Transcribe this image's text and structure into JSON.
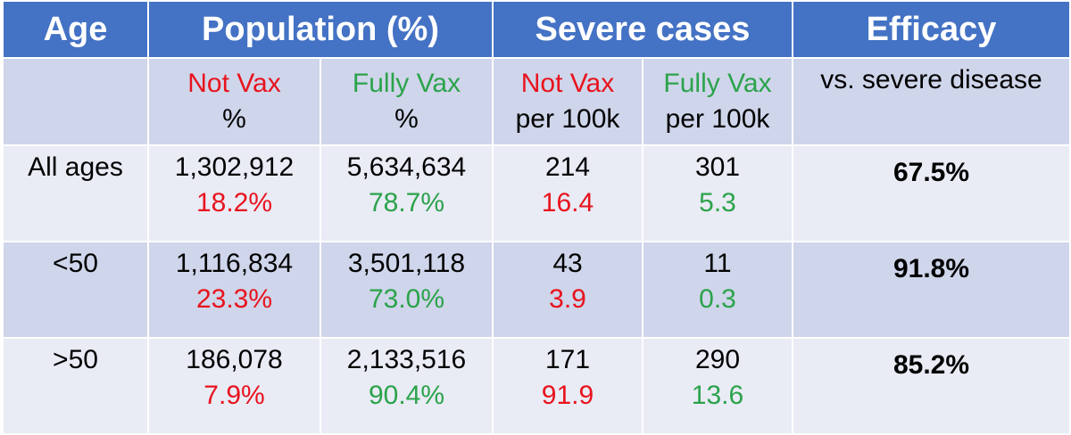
{
  "header": {
    "age": "Age",
    "population": "Population (%)",
    "severe": "Severe cases",
    "efficacy": "Efficacy"
  },
  "subheader": {
    "pop_not_vax": "Not Vax",
    "pop_not_vax_unit": "%",
    "pop_fully_vax": "Fully Vax",
    "pop_fully_vax_unit": "%",
    "sev_not_vax": "Not Vax",
    "sev_not_vax_unit": "per 100k",
    "sev_fully_vax": "Fully Vax",
    "sev_fully_vax_unit": "per 100k",
    "efficacy_desc": "vs. severe disease"
  },
  "rows": [
    {
      "age": "All ages",
      "pop_not_vax": "1,302,912",
      "pop_not_vax_pct": "18.2%",
      "pop_fully_vax": "5,634,634",
      "pop_fully_vax_pct": "78.7%",
      "sev_not_vax": "214",
      "sev_not_vax_rate": "16.4",
      "sev_fully_vax": "301",
      "sev_fully_vax_rate": "5.3",
      "efficacy": "67.5%"
    },
    {
      "age": "<50",
      "pop_not_vax": "1,116,834",
      "pop_not_vax_pct": "23.3%",
      "pop_fully_vax": "3,501,118",
      "pop_fully_vax_pct": "73.0%",
      "sev_not_vax": "43",
      "sev_not_vax_rate": "3.9",
      "sev_fully_vax": "11",
      "sev_fully_vax_rate": "0.3",
      "efficacy": "91.8%"
    },
    {
      "age": ">50",
      "pop_not_vax": "186,078",
      "pop_not_vax_pct": "7.9%",
      "pop_fully_vax": "2,133,516",
      "pop_fully_vax_pct": "90.4%",
      "sev_not_vax": "171",
      "sev_not_vax_rate": "91.9",
      "sev_fully_vax": "290",
      "sev_fully_vax_rate": "13.6",
      "efficacy": "85.2%"
    }
  ],
  "colors": {
    "header_bg": "#4472c4",
    "row_dark_bg": "#cfd5ea",
    "row_light_bg": "#e9ebf5",
    "not_vax": "#e8131d",
    "fully_vax": "#2ba34b"
  }
}
